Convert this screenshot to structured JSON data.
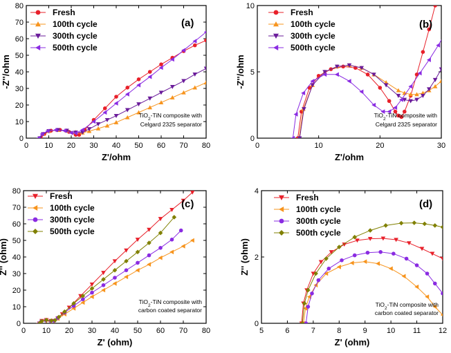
{
  "chart_data": [
    {
      "id": "a",
      "type": "scatter",
      "panel_label": "(a)",
      "xlabel": "Z'/ohm",
      "ylabel": "-Z''/ohm",
      "xlim": [
        0,
        80
      ],
      "ylim": [
        0,
        80
      ],
      "xticks": [
        0,
        10,
        20,
        30,
        40,
        50,
        60,
        70,
        80
      ],
      "yticks": [
        0,
        10,
        20,
        30,
        40,
        50,
        60,
        70,
        80
      ],
      "legend_position": "top-left",
      "annotation": [
        "TiO2-TiN composite with",
        "Celgard 2325 separator"
      ],
      "series": [
        {
          "name": "Fresh",
          "marker": "circle",
          "color": "#e8202a",
          "x": [
            6.5,
            8,
            11,
            15,
            19,
            22,
            23.5,
            26,
            30,
            35,
            40,
            45,
            50,
            55,
            60,
            65,
            70,
            75,
            80
          ],
          "y": [
            0,
            2.5,
            4.5,
            5,
            3.8,
            2,
            2,
            5,
            11,
            18,
            25,
            30.5,
            35.5,
            40,
            44.5,
            48.5,
            52.5,
            56,
            59
          ]
        },
        {
          "name": "100th cycle",
          "marker": "triangle-up",
          "color": "#f7941d",
          "x": [
            6,
            7.5,
            10,
            14,
            18,
            22,
            25,
            28,
            32,
            36,
            40,
            45,
            50,
            55,
            60,
            65,
            70,
            75,
            80
          ],
          "y": [
            0,
            2.5,
            4.2,
            4.9,
            4.5,
            3.6,
            3.3,
            4.2,
            5.8,
            7.5,
            9.5,
            12.5,
            15.5,
            18.5,
            21.5,
            24.5,
            27.5,
            30.5,
            33.5
          ]
        },
        {
          "name": "300th cycle",
          "marker": "triangle-down",
          "color": "#6a1b9a",
          "x": [
            6,
            7.5,
            10,
            14,
            18,
            22,
            25,
            28,
            32,
            36,
            40,
            45,
            50,
            55,
            60,
            65,
            70,
            75,
            80
          ],
          "y": [
            0,
            2.5,
            4.3,
            5,
            4.6,
            3.5,
            3.5,
            5.5,
            8.5,
            11,
            13.5,
            17,
            20.5,
            24,
            27.5,
            31,
            34.5,
            38.5,
            42
          ]
        },
        {
          "name": "500th cycle",
          "marker": "triangle-left",
          "color": "#8a2be2",
          "x": [
            5.5,
            7,
            9.5,
            13,
            17,
            20,
            22,
            25,
            30,
            35,
            40,
            45,
            50,
            55,
            60,
            65,
            70,
            75,
            80
          ],
          "y": [
            0,
            2.5,
            4.3,
            4.9,
            4.5,
            3.2,
            3,
            5,
            10,
            15.5,
            21,
            26.5,
            32,
            37,
            42.5,
            47.5,
            53,
            58.5,
            64
          ]
        }
      ]
    },
    {
      "id": "b",
      "type": "scatter",
      "panel_label": "(b)",
      "xlabel": "Z'/ohm",
      "ylabel": "-Z''/ohm",
      "xlim": [
        0,
        30
      ],
      "ylim": [
        0,
        10
      ],
      "xticks": [
        0,
        10,
        20,
        30
      ],
      "yticks": [
        0,
        5,
        10
      ],
      "legend_position": "top-left",
      "annotation": [
        "TiO2-TiN composite with",
        "Celgard 2325 separator"
      ],
      "series": [
        {
          "name": "Fresh",
          "marker": "circle",
          "color": "#e8202a",
          "x": [
            6.6,
            7.2,
            8.5,
            10,
            12,
            14,
            16,
            18,
            20,
            21.5,
            22.5,
            23,
            23.5,
            24,
            25,
            26,
            27,
            28,
            29
          ],
          "y": [
            0,
            2,
            3.8,
            4.7,
            5.2,
            5.4,
            5.3,
            4.8,
            3.8,
            2.8,
            2,
            1.7,
            1.6,
            2,
            3.2,
            4.8,
            6.5,
            8.2,
            10
          ]
        },
        {
          "name": "100th cycle",
          "marker": "triangle-up",
          "color": "#f7941d",
          "x": [
            6.8,
            7.5,
            9,
            11,
            13,
            15,
            17,
            19,
            21,
            23,
            24,
            25,
            26,
            27,
            28,
            29,
            30
          ],
          "y": [
            0,
            2.2,
            4,
            5,
            5.4,
            5.5,
            5.3,
            4.8,
            4.2,
            3.6,
            3.4,
            3.3,
            3.3,
            3.4,
            3.6,
            3.9,
            4.3
          ]
        },
        {
          "name": "300th cycle",
          "marker": "triangle-down",
          "color": "#6a1b9a",
          "x": [
            6.9,
            7.6,
            9,
            11,
            13,
            15,
            17,
            19,
            21,
            23,
            24,
            25,
            26,
            27,
            28,
            29,
            30
          ],
          "y": [
            0,
            2.2,
            4,
            5,
            5.4,
            5.5,
            5.3,
            4.8,
            4,
            3.2,
            2.9,
            2.8,
            2.9,
            3.2,
            3.7,
            4.4,
            5.2
          ]
        },
        {
          "name": "500th cycle",
          "marker": "triangle-left",
          "color": "#8a2be2",
          "x": [
            5.8,
            6.3,
            7.5,
            9,
            11,
            13,
            15,
            17,
            19,
            20.5,
            21.5,
            22.5,
            23.5,
            25,
            26.5,
            28,
            29.5,
            30.5
          ],
          "y": [
            0,
            1.8,
            3.4,
            4.3,
            4.8,
            4.8,
            4.3,
            3.5,
            2.5,
            2,
            2,
            2.3,
            2.9,
            3.9,
            4.9,
            5.9,
            7,
            7.8
          ]
        }
      ]
    },
    {
      "id": "c",
      "type": "scatter",
      "panel_label": "(c)",
      "xlabel": "Z' (ohm)",
      "ylabel": "Z'' (ohm)",
      "xlim": [
        0,
        80
      ],
      "ylim": [
        0,
        80
      ],
      "xticks": [
        0,
        10,
        20,
        30,
        40,
        50,
        60,
        70,
        80
      ],
      "yticks": [
        0,
        10,
        20,
        30,
        40,
        50,
        60,
        70,
        80
      ],
      "legend_position": "top-left",
      "annotation": [
        "TiO2-TiN composite with",
        "carbon coated separator"
      ],
      "series": [
        {
          "name": "Fresh",
          "marker": "triangle-down",
          "color": "#e8202a",
          "x": [
            7,
            8,
            10,
            12,
            13.5,
            15,
            17,
            20,
            25,
            30,
            35,
            40,
            45,
            50,
            55,
            60,
            65,
            70,
            74
          ],
          "y": [
            0,
            1.5,
            2,
            1.5,
            1.5,
            3,
            5.5,
            9.5,
            16.5,
            23.5,
            30.5,
            37.5,
            44,
            50.5,
            56.5,
            63,
            68.5,
            74,
            79
          ]
        },
        {
          "name": "100th cycle",
          "marker": "triangle-left",
          "color": "#f7941d",
          "x": [
            6.5,
            7.5,
            9.5,
            11.5,
            13,
            15,
            18,
            22,
            26,
            30,
            35,
            40,
            45,
            50,
            55,
            60,
            65,
            70,
            74
          ],
          "y": [
            0,
            1,
            1.5,
            1.2,
            1.3,
            2.8,
            5.5,
            9,
            12.5,
            16,
            20,
            24,
            28,
            32,
            35.5,
            39.5,
            43,
            46.5,
            50
          ]
        },
        {
          "name": "300th cycle",
          "marker": "circle",
          "color": "#8a2be2",
          "x": [
            6.8,
            7.8,
            9.8,
            12,
            13.5,
            15,
            18,
            22,
            26,
            30,
            35,
            40,
            45,
            50,
            55,
            60,
            65,
            69
          ],
          "y": [
            0,
            1.2,
            1.8,
            1.4,
            1.5,
            3.3,
            6.5,
            10.5,
            14.5,
            18.5,
            23,
            27.5,
            32,
            36.5,
            41,
            45.5,
            50.5,
            56
          ]
        },
        {
          "name": "500th cycle",
          "marker": "diamond",
          "color": "#808000",
          "x": [
            7,
            8,
            10,
            12.2,
            13.8,
            15.5,
            18,
            22,
            26,
            30,
            35,
            40,
            45,
            50,
            55,
            60,
            66
          ],
          "y": [
            0,
            1.3,
            2,
            1.6,
            1.8,
            3.8,
            7,
            12,
            16.5,
            21,
            26.5,
            32,
            37.5,
            43,
            48.5,
            54.5,
            64
          ]
        }
      ]
    },
    {
      "id": "d",
      "type": "scatter",
      "panel_label": "(d)",
      "xlabel": "Z' (ohm)",
      "ylabel": "Z'' (ohm)",
      "xlim": [
        5,
        12
      ],
      "ylim": [
        0,
        4
      ],
      "xticks": [
        5,
        6,
        7,
        8,
        9,
        10,
        11,
        12
      ],
      "yticks": [
        0,
        2,
        4
      ],
      "legend_position": "top-left",
      "annotation": [
        "TiO2-TiN composite with",
        "carbon coated separator"
      ],
      "series": [
        {
          "name": "Fresh",
          "marker": "triangle-down",
          "color": "#e8202a",
          "x": [
            6.55,
            6.62,
            6.75,
            7,
            7.3,
            7.7,
            8.2,
            8.7,
            9.2,
            9.7,
            10.2,
            10.7,
            11.2,
            11.6,
            12
          ],
          "y": [
            0,
            0.6,
            1,
            1.5,
            1.85,
            2.15,
            2.38,
            2.5,
            2.55,
            2.56,
            2.52,
            2.42,
            2.25,
            2.1,
            1.95
          ]
        },
        {
          "name": "100th cycle",
          "marker": "triangle-left",
          "color": "#f7941d",
          "x": [
            6.62,
            6.7,
            6.85,
            7.1,
            7.5,
            8,
            8.5,
            9,
            9.5,
            10,
            10.5,
            11,
            11.4,
            11.7,
            12
          ],
          "y": [
            0,
            0.45,
            0.8,
            1.15,
            1.5,
            1.7,
            1.82,
            1.86,
            1.8,
            1.65,
            1.42,
            1.1,
            0.8,
            0.5,
            0.25
          ]
        },
        {
          "name": "300th cycle",
          "marker": "circle",
          "color": "#8a2be2",
          "x": [
            6.72,
            6.8,
            6.95,
            7.2,
            7.6,
            8.1,
            8.6,
            9.1,
            9.6,
            10.1,
            10.6,
            11,
            11.4,
            11.7,
            12
          ],
          "y": [
            0,
            0.5,
            0.9,
            1.3,
            1.65,
            1.9,
            2.05,
            2.13,
            2.15,
            2.1,
            1.95,
            1.75,
            1.5,
            1.2,
            0.9
          ]
        },
        {
          "name": "500th cycle",
          "marker": "diamond",
          "color": "#808000",
          "x": [
            6.58,
            6.66,
            6.8,
            7.1,
            7.5,
            8,
            8.6,
            9.2,
            9.8,
            10.4,
            10.9,
            11.3,
            11.7,
            12
          ],
          "y": [
            0,
            0.6,
            1,
            1.5,
            1.95,
            2.3,
            2.6,
            2.8,
            2.95,
            3.02,
            3.03,
            3,
            2.95,
            2.9
          ]
        }
      ]
    }
  ]
}
